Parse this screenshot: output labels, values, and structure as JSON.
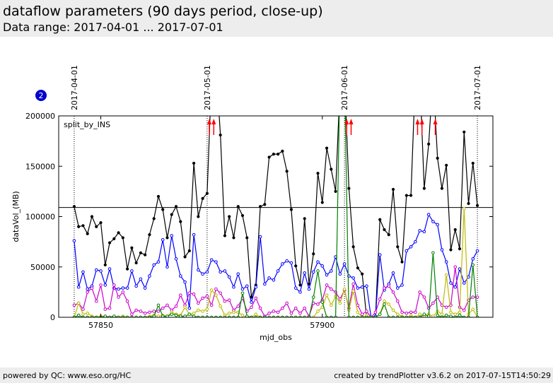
{
  "header": {
    "title": "dataflow parameters (90 days period, close-up)",
    "subtitle": "Data range: 2017-04-01 ... 2017-07-01"
  },
  "footer": {
    "left": "powered by QC: www.eso.org/HC",
    "right": "created by trendPlotter v3.6.2 on 2017-07-15T14:50:29"
  },
  "plot_badge": "2",
  "colors": {
    "black": "#000000",
    "blue": "#0000ff",
    "magenta": "#cc00cc",
    "yellow": "#bbbb00",
    "green": "#008000",
    "red": "#ff0000",
    "badge": "#0000cc"
  },
  "chart_data": {
    "type": "line",
    "title": "",
    "xlabel": "mjd_obs",
    "ylabel": "dataVol_(MB)",
    "annotation": "split_by_INS",
    "xlim": [
      57840.5,
      57938.5
    ],
    "ylim": [
      0,
      200000
    ],
    "x_ticks": [
      57850,
      57900
    ],
    "x_tick_labels": [
      "57850",
      "57900"
    ],
    "y_ticks": [
      0,
      50000,
      100000,
      150000,
      200000
    ],
    "y_tick_labels": [
      "0",
      "50000",
      "100000",
      "150000",
      "200000"
    ],
    "reference_line": 109000,
    "date_markers": [
      {
        "label": "2017-04-01",
        "x": 57844
      },
      {
        "label": "2017-05-01",
        "x": 57874
      },
      {
        "label": "2017-06-01",
        "x": 57905
      },
      {
        "label": "2017-07-01",
        "x": 57935
      }
    ],
    "offscale_arrows_x": [
      57874.5,
      57875.5,
      57905.5,
      57906.5,
      57921.5,
      57922.5,
      57925.5
    ],
    "x": [
      57844,
      57845,
      57846,
      57847,
      57848,
      57849,
      57850,
      57851,
      57852,
      57853,
      57854,
      57855,
      57856,
      57857,
      57858,
      57859,
      57860,
      57861,
      57862,
      57863,
      57864,
      57865,
      57866,
      57867,
      57868,
      57869,
      57870,
      57871,
      57872,
      57873,
      57874,
      57875,
      57876,
      57877,
      57878,
      57879,
      57880,
      57881,
      57882,
      57883,
      57884,
      57885,
      57886,
      57887,
      57888,
      57889,
      57890,
      57891,
      57892,
      57893,
      57894,
      57895,
      57896,
      57897,
      57898,
      57899,
      57900,
      57901,
      57902,
      57903,
      57904,
      57905,
      57906,
      57907,
      57908,
      57909,
      57910,
      57911,
      57912,
      57913,
      57914,
      57915,
      57916,
      57917,
      57918,
      57919,
      57920,
      57921,
      57922,
      57923,
      57924,
      57925,
      57926,
      57927,
      57928,
      57929,
      57930,
      57931,
      57932,
      57933,
      57934,
      57935
    ],
    "series": [
      {
        "color": "black",
        "values": [
          110000,
          90000,
          91000,
          83000,
          100000,
          90000,
          94000,
          52000,
          74000,
          78000,
          84000,
          79000,
          48000,
          69000,
          54000,
          64000,
          62000,
          82000,
          98000,
          120000,
          107000,
          79000,
          102000,
          110000,
          95000,
          60000,
          66000,
          153000,
          100000,
          118000,
          123000,
          240000,
          250000,
          181000,
          81000,
          100000,
          79000,
          110000,
          101000,
          79000,
          20000,
          32000,
          110000,
          112000,
          159000,
          162000,
          162000,
          165000,
          145000,
          107000,
          51000,
          32000,
          98000,
          33000,
          63000,
          143000,
          114000,
          168000,
          147000,
          125000,
          230000,
          240000,
          128000,
          70000,
          49000,
          43000,
          0,
          0,
          0,
          97000,
          87000,
          82000,
          127000,
          70000,
          55000,
          121000,
          121000,
          240000,
          240000,
          128000,
          172000,
          240000,
          158000,
          128000,
          151000,
          67000,
          87000,
          68000,
          184000,
          113000,
          153000,
          111000
        ]
      },
      {
        "color": "blue",
        "values": [
          76000,
          30000,
          45000,
          28000,
          31000,
          47000,
          46000,
          32000,
          48000,
          29000,
          28000,
          29000,
          29000,
          46000,
          31000,
          38000,
          29000,
          41000,
          52000,
          55000,
          77000,
          50000,
          81000,
          58000,
          41000,
          35000,
          9000,
          82000,
          47000,
          43000,
          45000,
          57000,
          55000,
          45000,
          46000,
          40000,
          30000,
          43000,
          28000,
          31000,
          15000,
          30000,
          80000,
          33000,
          39000,
          37000,
          46000,
          53000,
          56000,
          54000,
          29000,
          25000,
          44000,
          28000,
          45000,
          55000,
          51000,
          42000,
          46000,
          60000,
          43000,
          53000,
          41000,
          39000,
          29000,
          30000,
          31000,
          0,
          1000,
          62000,
          27000,
          33000,
          44000,
          29000,
          32000,
          66000,
          70000,
          75000,
          86000,
          85000,
          102000,
          95000,
          92000,
          67000,
          55000,
          34000,
          30000,
          48000,
          34000,
          40000,
          58000,
          66000
        ]
      },
      {
        "color": "magenta",
        "values": [
          12000,
          14000,
          8000,
          25000,
          29000,
          16000,
          32000,
          8000,
          9000,
          32000,
          20000,
          25000,
          16000,
          3000,
          7000,
          6000,
          4000,
          5000,
          6000,
          6000,
          9000,
          12000,
          7000,
          11000,
          22000,
          12000,
          24000,
          23000,
          14000,
          19000,
          21000,
          12000,
          28000,
          24000,
          16000,
          17000,
          7000,
          11000,
          19000,
          6000,
          10000,
          19000,
          9000,
          1000,
          4000,
          6000,
          5000,
          9000,
          14000,
          4000,
          9000,
          4000,
          9000,
          1000,
          14000,
          13000,
          17000,
          32000,
          28000,
          25000,
          18000,
          27000,
          9000,
          33000,
          12000,
          3000,
          6000,
          0,
          5000,
          18000,
          29000,
          31000,
          25000,
          16000,
          5000,
          4000,
          5000,
          5000,
          25000,
          20000,
          9000,
          14000,
          20000,
          12000,
          10000,
          12000,
          50000,
          10000,
          7000,
          17000,
          20000,
          20000
        ]
      },
      {
        "color": "yellow",
        "values": [
          0,
          14000,
          3000,
          4000,
          1000,
          0,
          1000,
          1000,
          0,
          1000,
          0,
          1000,
          0,
          0,
          0,
          0,
          0,
          1000,
          2000,
          1000,
          2000,
          1000,
          5000,
          3000,
          2000,
          10000,
          3000,
          4000,
          7000,
          6000,
          8000,
          27000,
          22000,
          11000,
          2000,
          4000,
          5000,
          5000,
          2000,
          0,
          0,
          3000,
          0,
          0,
          0,
          0,
          0,
          0,
          0,
          0,
          0,
          0,
          0,
          0,
          0,
          6000,
          10000,
          22000,
          12000,
          21000,
          14000,
          28000,
          7000,
          26000,
          5000,
          0,
          2000,
          0,
          0,
          3000,
          16000,
          13000,
          7000,
          3000,
          1000,
          0,
          2000,
          0,
          3000,
          1000,
          3000,
          1000,
          6000,
          3000,
          42000,
          5000,
          3000,
          5000,
          108000,
          3000,
          8000,
          0
        ]
      },
      {
        "color": "green",
        "values": [
          0,
          2000,
          0,
          0,
          0,
          0,
          0,
          1000,
          0,
          1000,
          0,
          0,
          0,
          0,
          0,
          0,
          0,
          0,
          1000,
          12000,
          1000,
          1000,
          3000,
          2000,
          1000,
          1000,
          3000,
          1000,
          0,
          0,
          0,
          0,
          0,
          0,
          0,
          0,
          0,
          0,
          24000,
          1000,
          0,
          0,
          0,
          0,
          0,
          0,
          0,
          0,
          0,
          0,
          0,
          0,
          0,
          0,
          20000,
          46000,
          15000,
          0,
          0,
          0,
          240000,
          240000,
          0,
          0,
          0,
          0,
          0,
          0,
          0,
          3000,
          13000,
          0,
          0,
          0,
          0,
          0,
          0,
          0,
          0,
          3000,
          1000,
          64000,
          2000,
          0,
          2000,
          1000,
          0,
          2000,
          0,
          0,
          52000,
          0
        ]
      }
    ]
  }
}
